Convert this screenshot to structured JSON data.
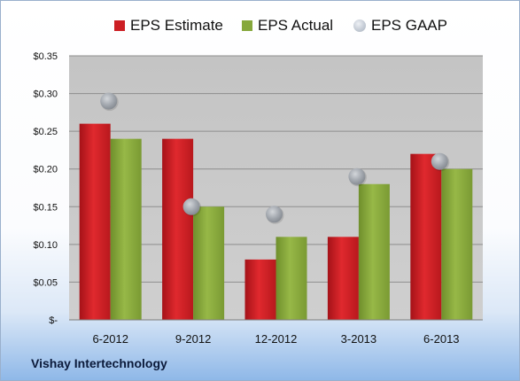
{
  "chart_data": {
    "type": "bar",
    "categories": [
      "6-2012",
      "9-2012",
      "12-2012",
      "3-2013",
      "6-2013"
    ],
    "series": [
      {
        "name": "EPS Estimate",
        "kind": "bar",
        "color": "#cc1f24",
        "values": [
          0.26,
          0.24,
          0.08,
          0.11,
          0.22
        ]
      },
      {
        "name": "EPS Actual",
        "kind": "bar",
        "color": "#86a83c",
        "values": [
          0.24,
          0.15,
          0.11,
          0.18,
          0.2
        ]
      },
      {
        "name": "EPS GAAP",
        "kind": "marker",
        "color": "#a8adb4",
        "values": [
          0.29,
          0.15,
          0.14,
          0.19,
          0.21
        ]
      }
    ],
    "y_ticks": [
      0,
      0.05,
      0.1,
      0.15,
      0.2,
      0.25,
      0.3,
      0.35
    ],
    "y_tick_labels": [
      "$-",
      "$0.05",
      "$0.10",
      "$0.15",
      "$0.20",
      "$0.25",
      "$0.30",
      "$0.35"
    ],
    "ylim": [
      0,
      0.35
    ],
    "grid": true,
    "legend_position": "top",
    "plot_background": "#c8c8c8",
    "title": "",
    "xlabel": "",
    "ylabel": ""
  },
  "footer": {
    "company": "Vishay Intertechnology"
  }
}
